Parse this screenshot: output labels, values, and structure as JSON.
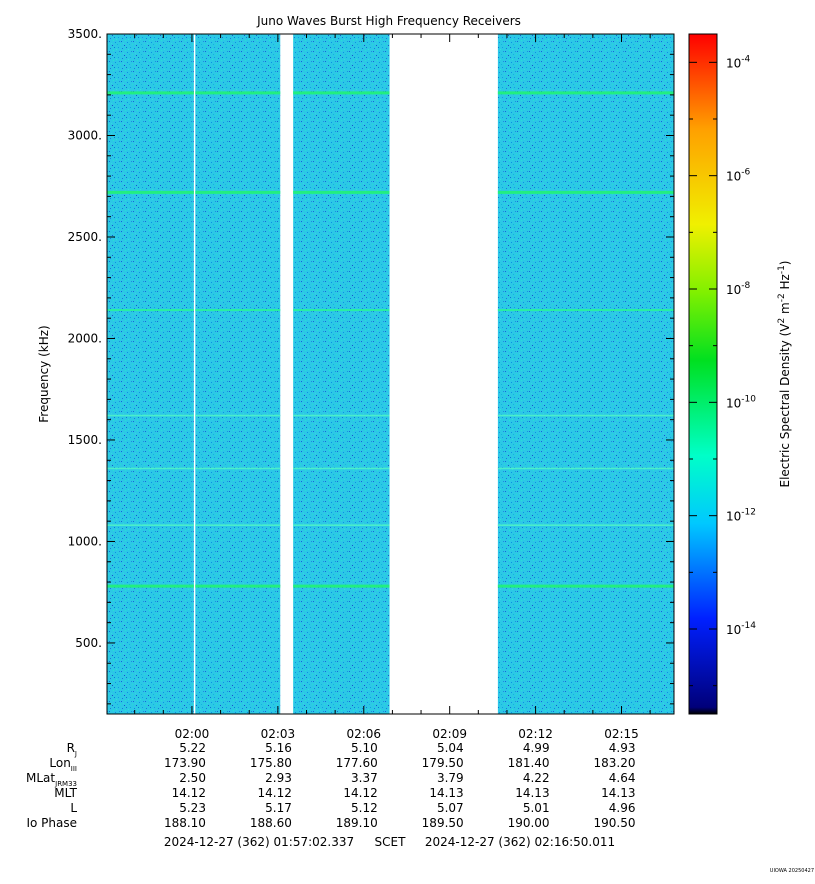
{
  "chart_data": {
    "type": "heatmap",
    "title": "Juno Waves Burst High Frequency Receivers",
    "ylabel": "Frequency (kHz)",
    "ylim": [
      150,
      3500
    ],
    "y_ticks": [
      500,
      1000,
      1500,
      2000,
      2500,
      3000,
      3500
    ],
    "y_tick_labels": [
      "500.",
      "1000.",
      "1500.",
      "2000.",
      "2500.",
      "3000.",
      "3500."
    ],
    "x_start": "01:57:02",
    "x_end": "02:16:50",
    "x_tick_labels": [
      "02:00",
      "02:03",
      "02:06",
      "02:09",
      "02:12",
      "02:15"
    ],
    "data_segments": [
      {
        "start": "01:57:02",
        "end": "02:00:04"
      },
      {
        "start": "02:00:07",
        "end": "02:03:05"
      },
      {
        "start": "02:03:32",
        "end": "02:06:54"
      },
      {
        "start": "02:10:41",
        "end": "02:16:50"
      }
    ],
    "emission_lines_khz": [
      {
        "freq": 3210,
        "strength": "strong"
      },
      {
        "freq": 2720,
        "strength": "strong"
      },
      {
        "freq": 2140,
        "strength": "medium"
      },
      {
        "freq": 1620,
        "strength": "weak"
      },
      {
        "freq": 1360,
        "strength": "weak"
      },
      {
        "freq": 1080,
        "strength": "weak"
      },
      {
        "freq": 780,
        "strength": "strong"
      }
    ],
    "background_level": "1e-12",
    "colorbar": {
      "label": "Electric Spectral Density (V2 m-2 Hz-1)",
      "label_parts": [
        "Electric Spectral Density (V",
        "2",
        " m",
        "-2",
        " Hz",
        "-1",
        ")"
      ],
      "range_log10": [
        -15.5,
        -3.5
      ],
      "ticks": [
        {
          "exp": -4,
          "base": "10",
          "sup": "-4"
        },
        {
          "exp": -6,
          "base": "10",
          "sup": "-6"
        },
        {
          "exp": -8,
          "base": "10",
          "sup": "-8"
        },
        {
          "exp": -10,
          "base": "10",
          "sup": "-10"
        },
        {
          "exp": -12,
          "base": "10",
          "sup": "-12"
        },
        {
          "exp": -14,
          "base": "10",
          "sup": "-14"
        }
      ]
    }
  },
  "ephemeris": {
    "rows": [
      {
        "label": "R",
        "sub": "J",
        "values": [
          "5.22",
          "5.16",
          "5.10",
          "5.04",
          "4.99",
          "4.93"
        ]
      },
      {
        "label": "Lon",
        "sub": "III",
        "values": [
          "173.90",
          "175.80",
          "177.60",
          "179.50",
          "181.40",
          "183.20"
        ]
      },
      {
        "label": "MLat",
        "sub": "JRM33",
        "values": [
          "2.50",
          "2.93",
          "3.37",
          "3.79",
          "4.22",
          "4.64"
        ]
      },
      {
        "label": "MLT",
        "sub": "",
        "values": [
          "14.12",
          "14.12",
          "14.12",
          "14.13",
          "14.13",
          "14.13"
        ]
      },
      {
        "label": "L",
        "sub": "",
        "values": [
          "5.23",
          "5.17",
          "5.12",
          "5.07",
          "5.01",
          "4.96"
        ]
      },
      {
        "label": "Io Phase",
        "sub": "",
        "values": [
          "188.10",
          "188.60",
          "189.10",
          "189.50",
          "190.00",
          "190.50"
        ]
      }
    ],
    "time_range_start": "2024-12-27 (362) 01:57:02.337",
    "scet_label": "SCET",
    "time_range_end": "2024-12-27 (362) 02:16:50.011"
  },
  "credit": "UIOWA 20250427"
}
